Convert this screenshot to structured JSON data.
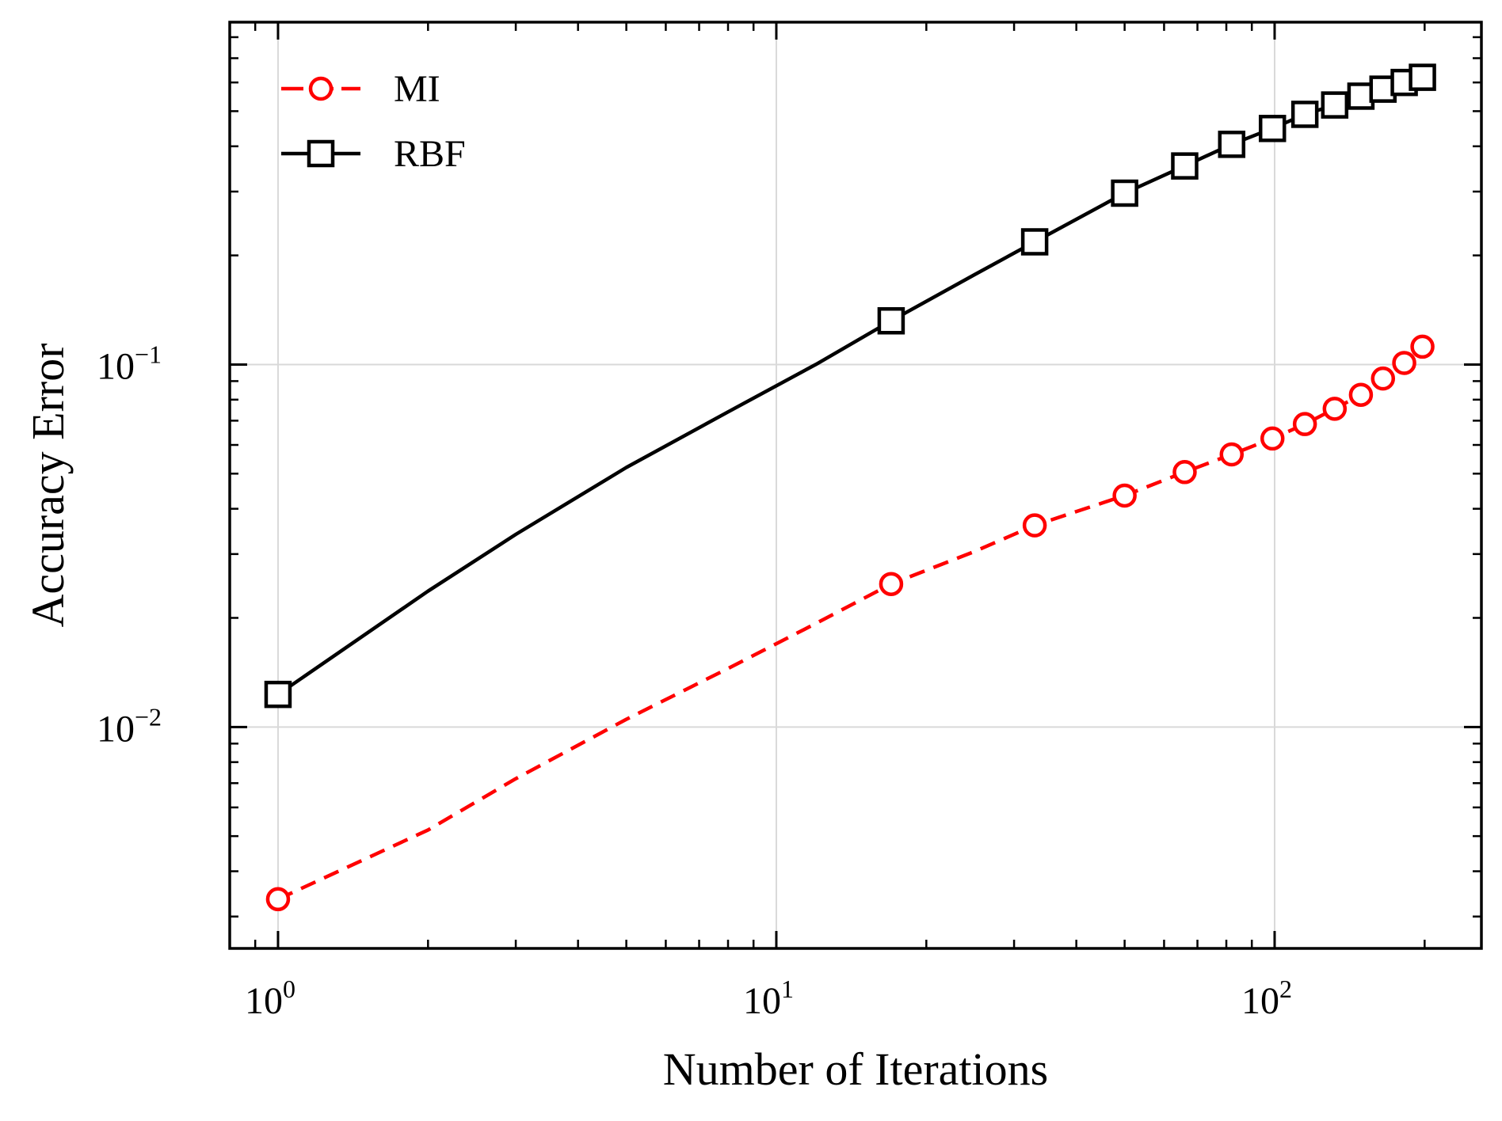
{
  "chart_data": {
    "type": "line",
    "xscale": "log",
    "yscale": "log",
    "xlabel": "Number of Iterations",
    "ylabel": "Accuracy Error",
    "xlim": [
      0.8,
      260
    ],
    "ylim": [
      0.00245,
      0.88
    ],
    "grid": true,
    "legend_position": "top-left",
    "x_ticks": [
      {
        "value": 1,
        "base": "10",
        "exp": "0"
      },
      {
        "value": 10,
        "base": "10",
        "exp": "1"
      },
      {
        "value": 100,
        "base": "10",
        "exp": "2"
      }
    ],
    "y_ticks": [
      {
        "value": 0.01,
        "base": "10",
        "exp": "−2"
      },
      {
        "value": 0.1,
        "base": "10",
        "exp": "−1"
      }
    ],
    "series": [
      {
        "name": "MI",
        "color": "#ff0000",
        "line_style": "dashed",
        "marker": "circle",
        "curve": [
          [
            1,
            0.00335
          ],
          [
            2,
            0.0052
          ],
          [
            3,
            0.0072
          ],
          [
            5,
            0.0105
          ],
          [
            8,
            0.0145
          ],
          [
            12,
            0.0193
          ],
          [
            17,
            0.0248
          ],
          [
            25,
            0.0305
          ],
          [
            33,
            0.036
          ],
          [
            50,
            0.0435
          ],
          [
            66,
            0.0505
          ],
          [
            82,
            0.0565
          ],
          [
            99,
            0.0625
          ],
          [
            115,
            0.0685
          ],
          [
            132,
            0.0755
          ],
          [
            149,
            0.0825
          ],
          [
            165,
            0.0915
          ],
          [
            182,
            0.101
          ],
          [
            198,
            0.112
          ]
        ],
        "markers": [
          [
            1,
            0.00335
          ],
          [
            17,
            0.0248
          ],
          [
            33,
            0.036
          ],
          [
            50,
            0.0435
          ],
          [
            66,
            0.0505
          ],
          [
            82,
            0.0565
          ],
          [
            99,
            0.0625
          ],
          [
            115,
            0.0685
          ],
          [
            132,
            0.0755
          ],
          [
            149,
            0.0825
          ],
          [
            165,
            0.0915
          ],
          [
            182,
            0.101
          ],
          [
            198,
            0.112
          ]
        ]
      },
      {
        "name": "RBF",
        "color": "#000000",
        "line_style": "solid",
        "marker": "square",
        "curve": [
          [
            1,
            0.0123
          ],
          [
            2,
            0.0237
          ],
          [
            3,
            0.034
          ],
          [
            5,
            0.052
          ],
          [
            8,
            0.074
          ],
          [
            12,
            0.1
          ],
          [
            17,
            0.132
          ],
          [
            25,
            0.177
          ],
          [
            33,
            0.218
          ],
          [
            50,
            0.297
          ],
          [
            66,
            0.353
          ],
          [
            82,
            0.405
          ],
          [
            99,
            0.448
          ],
          [
            115,
            0.49
          ],
          [
            132,
            0.52
          ],
          [
            149,
            0.55
          ],
          [
            165,
            0.575
          ],
          [
            182,
            0.6
          ],
          [
            198,
            0.62
          ]
        ],
        "markers": [
          [
            1,
            0.0123
          ],
          [
            17,
            0.132
          ],
          [
            33,
            0.218
          ],
          [
            50,
            0.297
          ],
          [
            66,
            0.353
          ],
          [
            82,
            0.405
          ],
          [
            99,
            0.448
          ],
          [
            115,
            0.49
          ],
          [
            132,
            0.52
          ],
          [
            149,
            0.55
          ],
          [
            165,
            0.575
          ],
          [
            182,
            0.6
          ],
          [
            198,
            0.62
          ]
        ]
      }
    ]
  }
}
